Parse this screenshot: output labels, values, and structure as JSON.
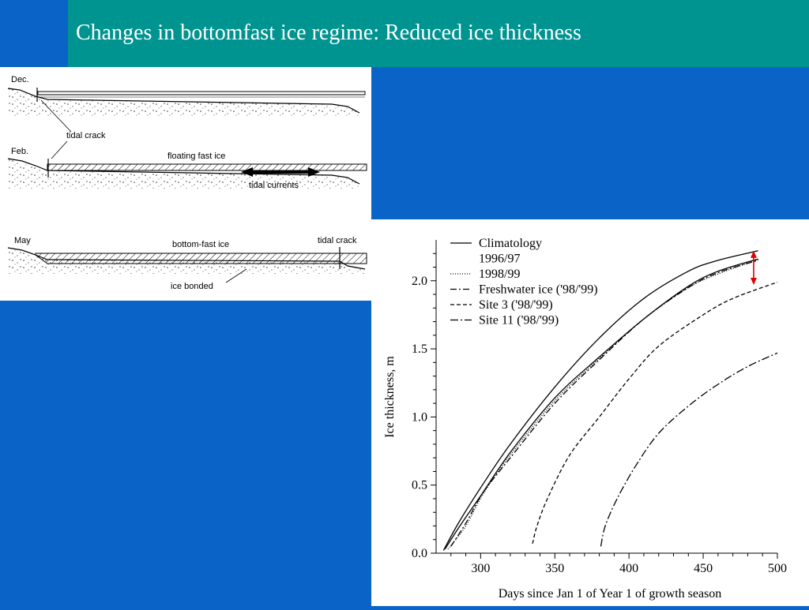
{
  "title": "Changes in bottomfast ice regime: Reduced ice thickness",
  "colors": {
    "title_bar": "#009490",
    "background": "#0a64c8",
    "arrow": "#e00000"
  },
  "diagram": {
    "panels": [
      {
        "label": "Dec.",
        "annotations": [
          "tidal crack"
        ]
      },
      {
        "label": "Feb.",
        "annotations": [
          "floating fast ice",
          "tidal currents"
        ]
      },
      {
        "label": "May",
        "annotations": [
          "bottom-fast ice",
          "tidal crack",
          "ice bonded"
        ]
      }
    ]
  },
  "chart_data": {
    "type": "line",
    "title": "",
    "xlabel": "Days since Jan 1 of Year 1 of growth season",
    "ylabel": "Ice thickness, m",
    "xlim": [
      270,
      500
    ],
    "ylim": [
      0,
      2.3
    ],
    "xticks": [
      "300",
      "350",
      "400",
      "450",
      "500"
    ],
    "yticks": [
      "0.0",
      "0.5",
      "1.0",
      "1.5",
      "2.0"
    ],
    "grid": false,
    "legend": "top-left",
    "series": [
      {
        "name": "Climatology",
        "dash": "",
        "x": [
          275,
          285,
          300,
          320,
          350,
          380,
          410,
          440,
          460,
          487
        ],
        "y": [
          0.02,
          0.22,
          0.48,
          0.8,
          1.22,
          1.58,
          1.87,
          2.07,
          2.15,
          2.22
        ]
      },
      {
        "name": "1996/97",
        "dash": "",
        "x": [
          276,
          286,
          300,
          320,
          350,
          380,
          410,
          440,
          460,
          487
        ],
        "y": [
          0.03,
          0.2,
          0.42,
          0.74,
          1.14,
          1.44,
          1.72,
          1.96,
          2.07,
          2.16
        ]
      },
      {
        "name": "1998/99",
        "dash": "1 2",
        "x": [
          278,
          290,
          302,
          320,
          350,
          380,
          410,
          440,
          460,
          488
        ],
        "y": [
          0.03,
          0.2,
          0.44,
          0.72,
          1.12,
          1.43,
          1.72,
          1.95,
          2.05,
          2.16
        ]
      },
      {
        "name": "Freshwater ice ('98/'99)",
        "dash": "8 3 2 3",
        "x": [
          280,
          290,
          302,
          320,
          350,
          380,
          410,
          440,
          460,
          487
        ],
        "y": [
          0.05,
          0.22,
          0.45,
          0.7,
          1.1,
          1.42,
          1.72,
          1.95,
          2.06,
          2.15
        ]
      },
      {
        "name": "Site 3 ('98/'99)",
        "dash": "5 3",
        "x": [
          335,
          338,
          345,
          360,
          380,
          400,
          420,
          450,
          470,
          500
        ],
        "y": [
          0.07,
          0.2,
          0.4,
          0.72,
          1.0,
          1.28,
          1.52,
          1.75,
          1.87,
          1.99
        ]
      },
      {
        "name": "Site 11 ('98/'99)",
        "dash": "10 3 2 3",
        "x": [
          381,
          384,
          392,
          405,
          420,
          440,
          460,
          480,
          500
        ],
        "y": [
          0.05,
          0.2,
          0.4,
          0.65,
          0.88,
          1.08,
          1.24,
          1.37,
          1.47
        ]
      }
    ],
    "annotations": [
      {
        "type": "double-arrow",
        "x": 484,
        "y1": 1.97,
        "y2": 2.22,
        "color": "#e00000"
      }
    ]
  }
}
